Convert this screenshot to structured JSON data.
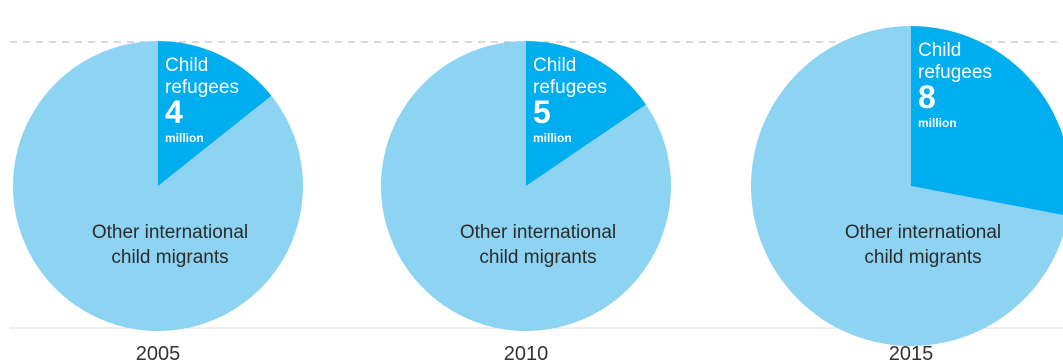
{
  "chart_data": [
    {
      "type": "pie",
      "year": "2005",
      "slices": [
        {
          "name": "Child refugees",
          "label_lines": [
            "Child",
            "refugees"
          ],
          "value": 4,
          "value_label": "4",
          "unit_label": "million",
          "color": "#00aeef"
        },
        {
          "name": "Other international child migrants",
          "label_lines": [
            "Other international",
            "child migrants"
          ],
          "share": 0.857,
          "color": "#8dd3f2"
        }
      ]
    },
    {
      "type": "pie",
      "year": "2010",
      "slices": [
        {
          "name": "Child refugees",
          "label_lines": [
            "Child",
            "refugees"
          ],
          "value": 5,
          "value_label": "5",
          "unit_label": "million",
          "color": "#00aeef"
        },
        {
          "name": "Other international child migrants",
          "label_lines": [
            "Other international",
            "child migrants"
          ],
          "share": 0.845,
          "color": "#8dd3f2"
        }
      ]
    },
    {
      "type": "pie",
      "year": "2015",
      "slices": [
        {
          "name": "Child refugees",
          "label_lines": [
            "Child",
            "refugees"
          ],
          "value": 8,
          "value_label": "8",
          "unit_label": "million",
          "color": "#00aeef"
        },
        {
          "name": "Other international child migrants",
          "label_lines": [
            "Other international",
            "child migrants"
          ],
          "share": 0.72,
          "color": "#8dd3f2"
        }
      ]
    }
  ],
  "colors": {
    "refugees": "#00aeef",
    "other": "#8dd3f2",
    "reference_line": "#b5b5b5",
    "baseline": "#dcdcdc"
  }
}
